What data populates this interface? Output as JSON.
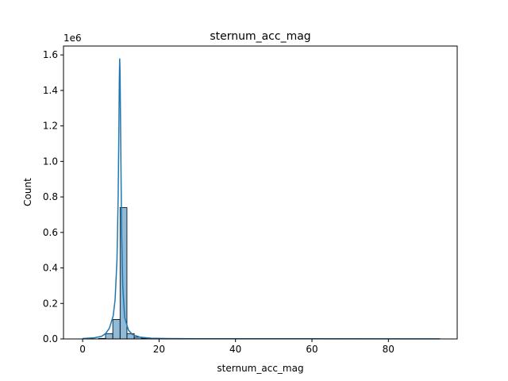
{
  "chart_data": {
    "type": "bar",
    "title": "sternum_acc_mag",
    "xlabel": "sternum_acc_mag",
    "ylabel": "Count",
    "y_offset_label": "1e6",
    "xlim": [
      -5,
      98
    ],
    "ylim": [
      0,
      1.65
    ],
    "x_ticks": [
      0,
      20,
      40,
      60,
      80
    ],
    "y_ticks": [
      0.0,
      0.2,
      0.4,
      0.6,
      0.8,
      1.0,
      1.2,
      1.4,
      1.6
    ],
    "grid": false,
    "bar_color": "#1f77b4",
    "bars": [
      {
        "x0": 4.2,
        "x1": 6.0,
        "value": 0.003
      },
      {
        "x0": 6.0,
        "x1": 7.9,
        "value": 0.03
      },
      {
        "x0": 7.9,
        "x1": 9.8,
        "value": 0.11
      },
      {
        "x0": 9.8,
        "x1": 11.6,
        "value": 0.74
      },
      {
        "x0": 11.6,
        "x1": 13.5,
        "value": 0.03
      },
      {
        "x0": 13.5,
        "x1": 15.4,
        "value": 0.01
      },
      {
        "x0": 15.4,
        "x1": 17.2,
        "value": 0.004
      },
      {
        "x0": 17.2,
        "x1": 19.1,
        "value": 0.002
      }
    ],
    "kde": {
      "x": [
        0,
        3,
        5,
        6,
        7,
        8,
        8.5,
        9,
        9.3,
        9.5,
        9.6,
        9.7,
        9.8,
        10.0,
        10.2,
        10.5,
        11,
        12,
        13,
        15,
        18,
        22,
        30,
        50,
        93.5
      ],
      "y": [
        0.002,
        0.006,
        0.015,
        0.03,
        0.06,
        0.13,
        0.22,
        0.45,
        0.8,
        1.2,
        1.45,
        1.58,
        1.5,
        1.05,
        0.6,
        0.3,
        0.12,
        0.05,
        0.025,
        0.01,
        0.004,
        0.002,
        0.001,
        0.001,
        0.0005
      ]
    }
  }
}
